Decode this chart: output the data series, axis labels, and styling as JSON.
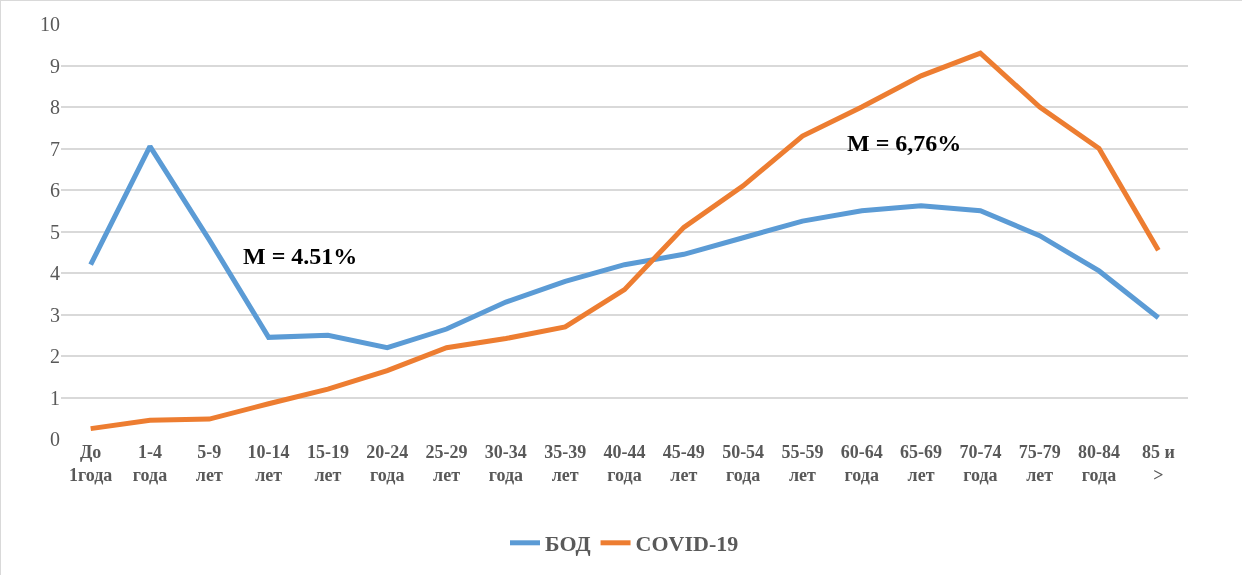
{
  "chart_data": {
    "type": "line",
    "categories": [
      "До\n1года",
      "1-4\nгода",
      "5-9\nлет",
      "10-14\nлет",
      "15-19\nлет",
      "20-24\nгода",
      "25-29\nлет",
      "30-34\nгода",
      "35-39\nлет",
      "40-44\nгода",
      "45-49\nлет",
      "50-54\nгода",
      "55-59\nлет",
      "60-64\nгода",
      "65-69\nлет",
      "70-74\nгода",
      "75-79\nлет",
      "80-84\nгода",
      "85 и\n>"
    ],
    "series": [
      {
        "name": "БОД",
        "color": "#5b9bd5",
        "values": [
          4.2,
          7.05,
          4.8,
          2.45,
          2.5,
          2.2,
          2.65,
          3.3,
          3.8,
          4.2,
          4.45,
          4.85,
          5.25,
          5.5,
          5.62,
          5.5,
          4.9,
          4.05,
          2.92
        ]
      },
      {
        "name": "COVID-19",
        "color": "#ed7d31",
        "values": [
          0.25,
          0.45,
          0.48,
          0.85,
          1.2,
          1.65,
          2.2,
          2.42,
          2.7,
          3.6,
          5.1,
          6.1,
          7.3,
          8.0,
          8.75,
          9.3,
          8.0,
          7.0,
          4.55
        ]
      }
    ],
    "ylim": [
      0,
      10
    ],
    "yticks": [
      0,
      1,
      2,
      3,
      4,
      5,
      6,
      7,
      8,
      9,
      10
    ],
    "grid": "y",
    "legend": "bottom",
    "marker": "none",
    "line_style": "solid",
    "annotations": [
      "M = 4.51%",
      "M = 6,76%"
    ]
  }
}
